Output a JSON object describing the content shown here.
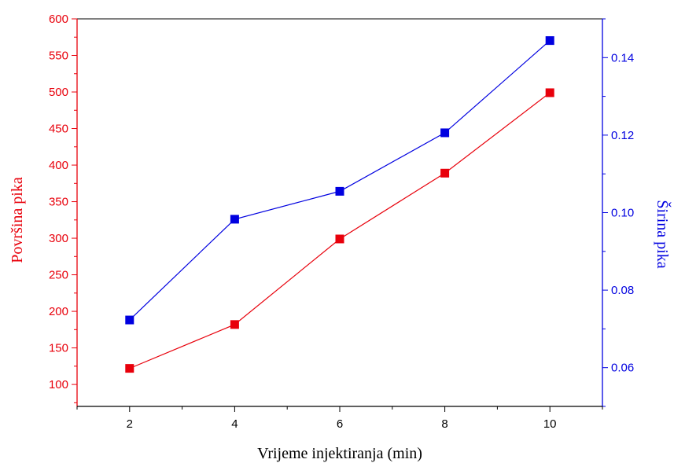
{
  "chart_data": {
    "type": "line",
    "xlabel": "Vrijeme injektiranja (min)",
    "ylabel_left": "Površina pika",
    "ylabel_right": "Širina pika",
    "x": [
      2,
      4,
      6,
      8,
      10
    ],
    "xlim": [
      1,
      11
    ],
    "xticks": [
      2,
      4,
      6,
      8,
      10
    ],
    "ylim_left": [
      70,
      600
    ],
    "yticks_left": [
      100,
      150,
      200,
      250,
      300,
      350,
      400,
      450,
      500,
      550,
      600
    ],
    "ylim_right": [
      0.05,
      0.15
    ],
    "yticks_right": [
      0.06,
      0.08,
      0.1,
      0.12,
      0.14
    ],
    "grid": false,
    "series": [
      {
        "axis": "left",
        "color": "#e8000b",
        "marker": "square",
        "values": [
          122,
          182,
          299,
          389,
          499
        ]
      },
      {
        "axis": "right",
        "color": "#0000e0",
        "marker": "square",
        "values": [
          0.0723,
          0.0983,
          0.1055,
          0.1206,
          0.1444
        ]
      }
    ],
    "colors": {
      "left_axis": "#e8000b",
      "right_axis": "#0000e0",
      "bottom_axis": "#000000"
    }
  }
}
